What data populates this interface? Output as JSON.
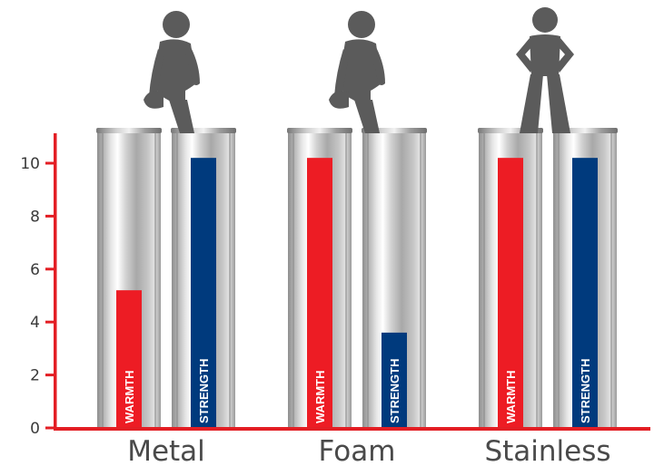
{
  "chart_data": {
    "type": "bar",
    "categories": [
      "Metal",
      "Foam",
      "Stainless"
    ],
    "series": [
      {
        "name": "WARMTH",
        "values": [
          5.2,
          10.2,
          10.2
        ],
        "color": "#ed1c24"
      },
      {
        "name": "STRENGTH",
        "values": [
          10.2,
          3.6,
          10.2
        ],
        "color": "#003a7d"
      }
    ],
    "yticks": [
      0,
      2,
      4,
      6,
      8,
      10
    ],
    "ylim": [
      0,
      11
    ],
    "grid": false,
    "axis_color": "#e31e24",
    "title": "",
    "xlabel": "",
    "ylabel": "",
    "figures": [
      {
        "name": "person-standing-on-one-leg-icon",
        "category": "Metal"
      },
      {
        "name": "person-standing-on-one-leg-icon",
        "category": "Foam"
      },
      {
        "name": "person-standing-with-hands-on-hips-icon",
        "category": "Stainless"
      }
    ]
  }
}
